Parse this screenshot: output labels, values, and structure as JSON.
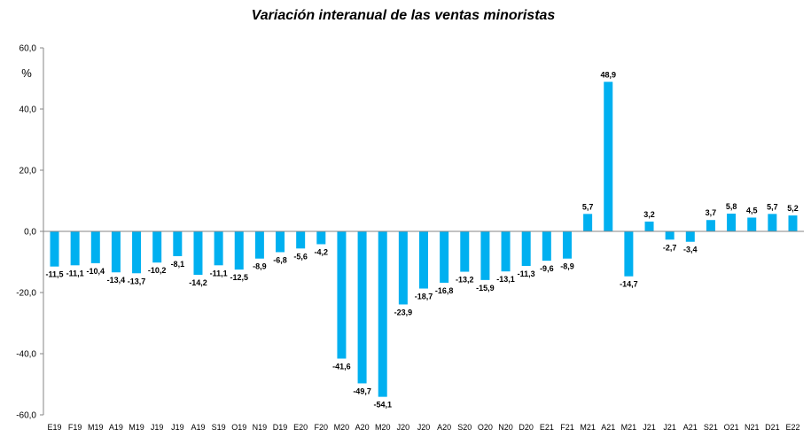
{
  "chart_data": {
    "type": "bar",
    "title": "Variación interanual de las ventas minoristas",
    "ylabel": "%",
    "xlabel": "",
    "ylim": [
      -60,
      60
    ],
    "yticks": [
      "60,0",
      "40,0",
      "20,0",
      "0,0",
      "-20,0",
      "-40,0",
      "-60,0"
    ],
    "ytick_values": [
      60,
      40,
      20,
      0,
      -20,
      -40,
      -60
    ],
    "grid": false,
    "bar_color": "#00B0F0",
    "categories": [
      "E19",
      "F19",
      "M19",
      "A19",
      "M19",
      "J19",
      "J19",
      "A19",
      "S19",
      "O19",
      "N19",
      "D19",
      "E20",
      "F20",
      "M20",
      "A20",
      "M20",
      "J20",
      "J20",
      "A20",
      "S20",
      "O20",
      "N20",
      "D20",
      "E21",
      "F21",
      "M21",
      "A21",
      "M21",
      "J21",
      "J21",
      "A21",
      "S21",
      "O21",
      "N21",
      "D21",
      "E22"
    ],
    "values": [
      -11.5,
      -11.1,
      -10.4,
      -13.4,
      -13.7,
      -10.2,
      -8.1,
      -14.2,
      -11.1,
      -12.5,
      -8.9,
      -6.8,
      -5.6,
      -4.2,
      -41.6,
      -49.7,
      -54.1,
      -23.9,
      -18.7,
      -16.8,
      -13.2,
      -15.9,
      -13.1,
      -11.3,
      -9.6,
      -8.9,
      5.7,
      48.9,
      -14.7,
      3.2,
      -2.7,
      -3.4,
      3.7,
      5.8,
      4.5,
      5.7,
      5.2
    ],
    "data_labels": [
      "-11,5",
      "-11,1",
      "-10,4",
      "-13,4",
      "-13,7",
      "-10,2",
      "-8,1",
      "-14,2",
      "-11,1",
      "-12,5",
      "-8,9",
      "-6,8",
      "-5,6",
      "-4,2",
      "-41,6",
      "-49,7",
      "-54,1",
      "-23,9",
      "-18,7",
      "-16,8",
      "-13,2",
      "-15,9",
      "-13,1",
      "-11,3",
      "-9,6",
      "-8,9",
      "5,7",
      "48,9",
      "-14,7",
      "3,2",
      "-2,7",
      "-3,4",
      "3,7",
      "5,8",
      "4,5",
      "5,7",
      "5,2"
    ]
  }
}
